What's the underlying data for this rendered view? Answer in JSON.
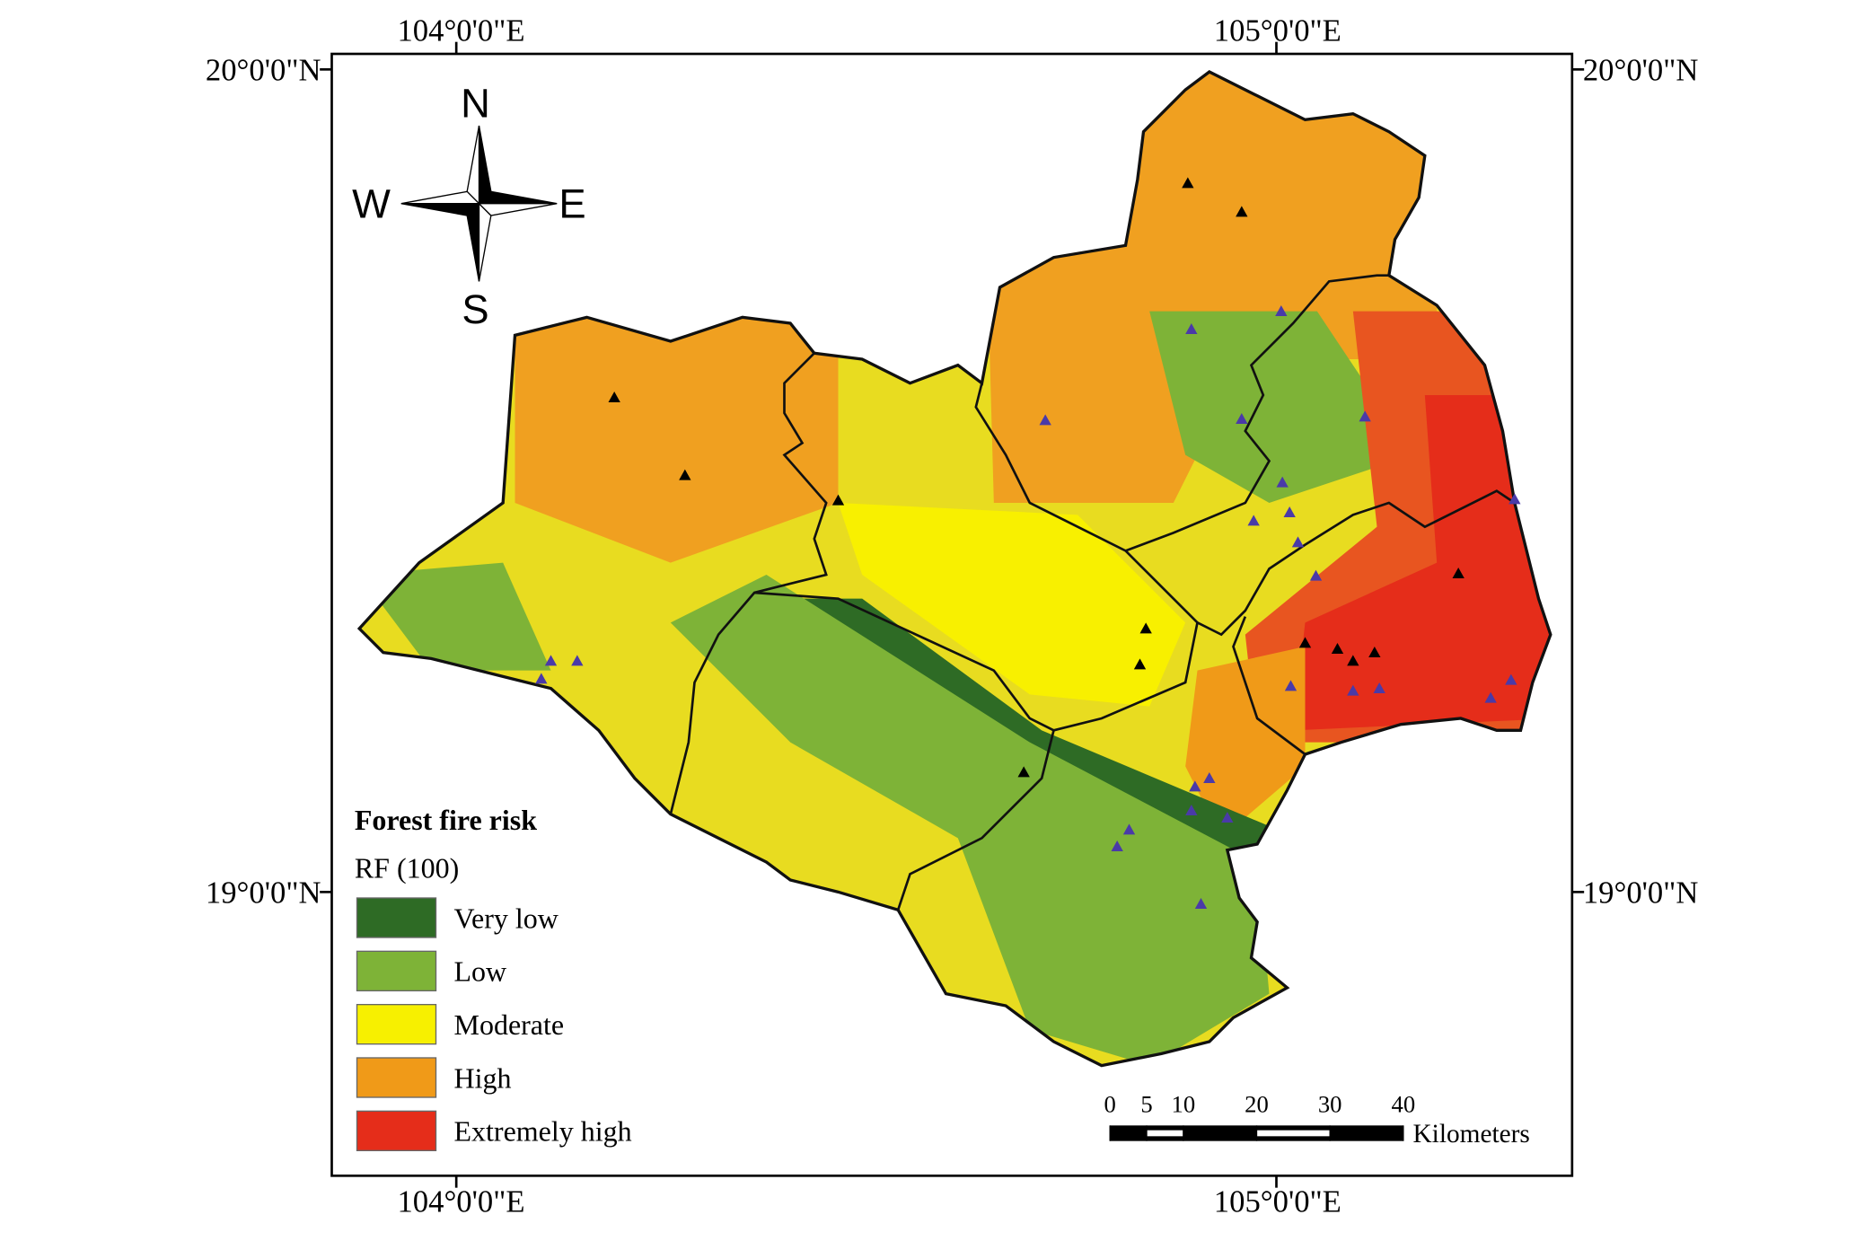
{
  "map": {
    "coordinates": {
      "top": [
        "104°0'0\"E",
        "105°0'0\"E"
      ],
      "bottom": [
        "104°0'0\"E",
        "105°0'0\"E"
      ],
      "left": [
        "20°0'0\"N",
        "19°0'0\"N"
      ],
      "right": [
        "20°0'0\"N",
        "19°0'0\"N"
      ]
    },
    "compass": {
      "north": "N",
      "south": "S",
      "west": "W",
      "east": "E"
    },
    "legend": {
      "title": "Forest fire risk",
      "subtitle": "RF (100)",
      "items": [
        {
          "label": "Very low",
          "color": "#2e6b25"
        },
        {
          "label": "Low",
          "color": "#7eb337"
        },
        {
          "label": "Moderate",
          "color": "#f7f000"
        },
        {
          "label": "High",
          "color": "#f09a18"
        },
        {
          "label": "Extremely high",
          "color": "#e52d1a"
        }
      ]
    },
    "scale_bar": {
      "ticks": [
        0,
        5,
        10,
        20,
        30,
        40
      ],
      "unit": "Kilometers"
    }
  }
}
